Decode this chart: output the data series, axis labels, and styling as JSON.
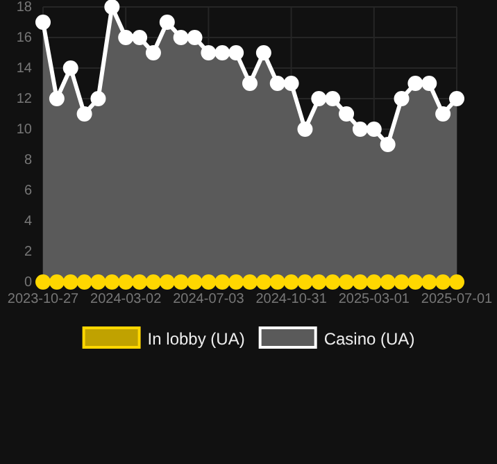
{
  "chart_data": {
    "type": "area",
    "categories": [
      "2023-10-27",
      null,
      null,
      null,
      null,
      null,
      "2024-03-02",
      null,
      null,
      null,
      null,
      null,
      "2024-07-03",
      null,
      null,
      null,
      null,
      null,
      "2024-10-31",
      null,
      null,
      null,
      null,
      null,
      "2025-03-01",
      null,
      null,
      null,
      null,
      null,
      "2025-07-01"
    ],
    "series": [
      {
        "name": "In lobby (UA)",
        "type": "line",
        "color": "#ffd700",
        "values": [
          0,
          0,
          0,
          0,
          0,
          0,
          0,
          0,
          0,
          0,
          0,
          0,
          0,
          0,
          0,
          0,
          0,
          0,
          0,
          0,
          0,
          0,
          0,
          0,
          0,
          0,
          0,
          0,
          0,
          0,
          0
        ]
      },
      {
        "name": "Casino (UA)",
        "color": "#ffffff",
        "values": [
          17,
          12,
          14,
          11,
          12,
          18,
          16,
          16,
          15,
          17,
          16,
          16,
          15,
          15,
          15,
          13,
          15,
          13,
          13,
          10,
          12,
          12,
          11,
          10,
          10,
          9,
          12,
          13,
          13,
          11,
          12
        ]
      }
    ],
    "ylim": [
      0,
      18
    ],
    "yticks": [
      0,
      2,
      4,
      6,
      8,
      10,
      12,
      14,
      16,
      18
    ],
    "grid": true,
    "legend": "bottom",
    "marker": "circle"
  }
}
